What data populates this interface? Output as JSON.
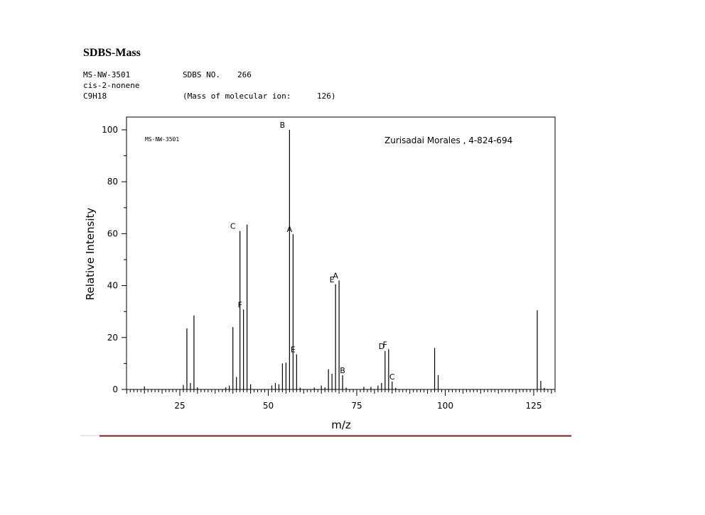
{
  "header": {
    "title": "SDBS-Mass",
    "record_id": "MS-NW-3501",
    "sdbs_no_label": "SDBS NO.",
    "sdbs_no": "266",
    "compound": "cis-2-nonene",
    "formula": "C9H18",
    "molecular_ion_text": "(Mass of molecular ion:",
    "molecular_ion_value": "126)"
  },
  "colors": {
    "peaks": "#000000",
    "frame": "#000000",
    "rule": "#7a1f1f"
  },
  "chart_data": {
    "type": "bar",
    "title": "",
    "xlabel": "m/z",
    "ylabel": "Relative Intensity",
    "xlim": [
      10,
      131
    ],
    "ylim": [
      0,
      100
    ],
    "xticks": [
      25,
      50,
      75,
      100,
      125
    ],
    "yticks": [
      0,
      20,
      40,
      60,
      80,
      100
    ],
    "inner_id": "MS-NW-3501",
    "annotation": "Zurisadai Morales , 4-824-694",
    "peaks": [
      {
        "x": 15,
        "y": 1.2
      },
      {
        "x": 26,
        "y": 1.7
      },
      {
        "x": 27,
        "y": 23.5
      },
      {
        "x": 28,
        "y": 2.5
      },
      {
        "x": 29,
        "y": 28.5
      },
      {
        "x": 30,
        "y": 0.8
      },
      {
        "x": 38,
        "y": 0.8
      },
      {
        "x": 39,
        "y": 1.5
      },
      {
        "x": 40,
        "y": 24.0
      },
      {
        "x": 41,
        "y": 4.8
      },
      {
        "x": 42,
        "y": 61.0
      },
      {
        "x": 43,
        "y": 30.8
      },
      {
        "x": 44,
        "y": 63.5
      },
      {
        "x": 45,
        "y": 2.0
      },
      {
        "x": 51,
        "y": 1.5
      },
      {
        "x": 52,
        "y": 2.5
      },
      {
        "x": 53,
        "y": 2.0
      },
      {
        "x": 54,
        "y": 10.0
      },
      {
        "x": 55,
        "y": 10.3
      },
      {
        "x": 56,
        "y": 100
      },
      {
        "x": 57,
        "y": 59.8
      },
      {
        "x": 58,
        "y": 13.5
      },
      {
        "x": 59,
        "y": 0.7
      },
      {
        "x": 63,
        "y": 0.7
      },
      {
        "x": 65,
        "y": 1.5
      },
      {
        "x": 66,
        "y": 0.8
      },
      {
        "x": 67,
        "y": 7.8
      },
      {
        "x": 68,
        "y": 6.0
      },
      {
        "x": 69,
        "y": 40.5
      },
      {
        "x": 70,
        "y": 42.0
      },
      {
        "x": 71,
        "y": 5.5
      },
      {
        "x": 72,
        "y": 0.7
      },
      {
        "x": 77,
        "y": 1.0
      },
      {
        "x": 79,
        "y": 1.0
      },
      {
        "x": 81,
        "y": 1.5
      },
      {
        "x": 82,
        "y": 2.5
      },
      {
        "x": 83,
        "y": 14.8
      },
      {
        "x": 84,
        "y": 15.5
      },
      {
        "x": 85,
        "y": 3.0
      },
      {
        "x": 86,
        "y": 0.6
      },
      {
        "x": 97,
        "y": 16.0
      },
      {
        "x": 98,
        "y": 5.5
      },
      {
        "x": 126,
        "y": 30.5
      },
      {
        "x": 127,
        "y": 3.3
      },
      {
        "x": 128,
        "y": 0.6
      }
    ],
    "peak_labels": [
      {
        "text": "B",
        "x": 55,
        "y": 100
      },
      {
        "text": "C",
        "x": 41,
        "y": 61
      },
      {
        "text": "A",
        "x": 57,
        "y": 59.8
      },
      {
        "text": "F",
        "x": 43,
        "y": 30.8
      },
      {
        "text": "E",
        "x": 58,
        "y": 13.5
      },
      {
        "text": "A",
        "x": 70,
        "y": 42
      },
      {
        "text": "E",
        "x": 69,
        "y": 40.5
      },
      {
        "text": "B",
        "x": 72,
        "y": 5.5
      },
      {
        "text": "D",
        "x": 83,
        "y": 14.8
      },
      {
        "text": "F",
        "x": 84,
        "y": 15.5
      },
      {
        "text": "C",
        "x": 86,
        "y": 3.0
      }
    ]
  }
}
